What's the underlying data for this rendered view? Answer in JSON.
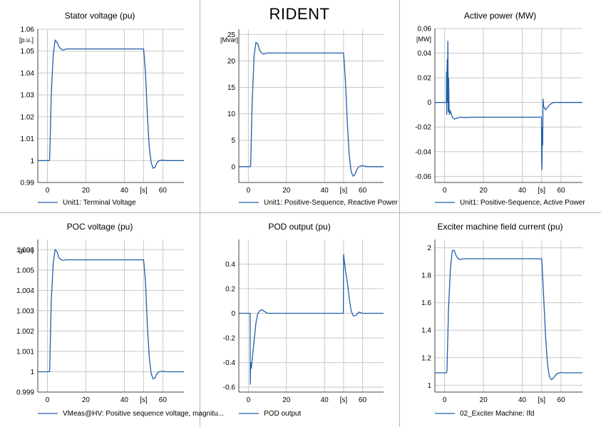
{
  "page": {
    "title": "RIDENT",
    "colors": {
      "line": "#1f5fa8",
      "grid": "#c8c8c8",
      "axis": "#444444",
      "border": "#b5b5b5"
    }
  },
  "chart_data": [
    {
      "type": "line",
      "title": "Stator voltage (pu)",
      "ylabel": "[p.u.]",
      "xlabel": "[s]",
      "xlim": [
        -5,
        71
      ],
      "ylim": [
        0.99,
        1.06
      ],
      "xticks": [
        "0",
        "20",
        "40",
        "60"
      ],
      "yticks": [
        "0.99",
        "1",
        "1.01",
        "1.02",
        "1.03",
        "1.04",
        "1.05",
        "1.06"
      ],
      "legend": "Unit1: Terminal Voltage",
      "grid": true,
      "x": [
        -5,
        1,
        1.2,
        2,
        3,
        4,
        5,
        6,
        7,
        8,
        10,
        15,
        25,
        35,
        50,
        50.3,
        51,
        52,
        53,
        54,
        55,
        56,
        57,
        58,
        60,
        62,
        65,
        71
      ],
      "y": [
        1.0,
        1.0,
        1.001,
        1.03,
        1.048,
        1.055,
        1.054,
        1.052,
        1.051,
        1.0505,
        1.051,
        1.051,
        1.051,
        1.051,
        1.051,
        1.048,
        1.04,
        1.02,
        1.006,
        0.999,
        0.9965,
        0.997,
        0.999,
        1.0,
        1.0002,
        1.0,
        1.0,
        1.0
      ]
    },
    {
      "type": "line",
      "title": "",
      "ylabel": "[Mvar]",
      "xlabel": "[s]",
      "xlim": [
        -5,
        71
      ],
      "ylim": [
        -3,
        26
      ],
      "xticks": [
        "0",
        "20",
        "40",
        "60"
      ],
      "yticks": [
        "0",
        "5",
        "10",
        "15",
        "20",
        "25"
      ],
      "legend": "Unit1: Positive-Sequence, Reactive Power",
      "grid": true,
      "x": [
        -5,
        1,
        1.2,
        2,
        3,
        4,
        5,
        6,
        7,
        8,
        10,
        15,
        25,
        35,
        50,
        50.3,
        51,
        52,
        53,
        54,
        55,
        56,
        57,
        58,
        60,
        62,
        65,
        71
      ],
      "y": [
        0,
        0,
        0.3,
        12,
        21,
        23.5,
        23.2,
        22,
        21.5,
        21.3,
        21.5,
        21.5,
        21.5,
        21.5,
        21.5,
        20,
        16,
        8,
        2,
        -1,
        -1.8,
        -1.5,
        -0.5,
        0,
        0.2,
        0,
        0,
        0
      ]
    },
    {
      "type": "line",
      "title": "Active power (MW)",
      "ylabel": "[MW]",
      "xlabel": "[s]",
      "xlim": [
        -5,
        71
      ],
      "ylim": [
        -0.065,
        0.06
      ],
      "xticks": [
        "0",
        "20",
        "40",
        "60"
      ],
      "yticks": [
        "-0.06",
        "-0.04",
        "-0.02",
        "0",
        "0.02",
        "0.04",
        "0.06"
      ],
      "legend": "Unit1: Positive-Sequence, Active Power",
      "grid": true,
      "x": [
        -5,
        0.9,
        1.0,
        1.1,
        1.3,
        1.5,
        1.7,
        1.9,
        2.1,
        2.3,
        2.5,
        3,
        4,
        5,
        6,
        7,
        8,
        10,
        15,
        25,
        35,
        49.9,
        50.0,
        50.1,
        50.3,
        50.5,
        50.7,
        51,
        52,
        53,
        54,
        56,
        58,
        60,
        71
      ],
      "y": [
        0,
        0,
        0.025,
        -0.01,
        0.035,
        0.0,
        0.05,
        -0.008,
        0.02,
        -0.003,
        -0.01,
        -0.007,
        -0.012,
        -0.0135,
        -0.013,
        -0.0125,
        -0.012,
        -0.0122,
        -0.012,
        -0.012,
        -0.012,
        -0.012,
        -0.05,
        -0.055,
        -0.02,
        -0.035,
        0.003,
        -0.003,
        -0.006,
        -0.004,
        -0.002,
        0.0,
        0.0,
        0.0,
        0.0
      ]
    },
    {
      "type": "line",
      "title": "POC voltage (pu)",
      "ylabel": "[p.u.]",
      "xlabel": "[s]",
      "xlim": [
        -5,
        71
      ],
      "ylim": [
        0.999,
        1.0065
      ],
      "xticks": [
        "0",
        "20",
        "40",
        "60"
      ],
      "yticks": [
        "0.999",
        "1",
        "1.001",
        "1.002",
        "1.003",
        "1.004",
        "1.005",
        "1.006"
      ],
      "legend": "VMeas@HV: Positive sequence voltage, magnitu...",
      "grid": true,
      "x": [
        -5,
        1,
        1.2,
        2,
        3,
        4,
        5,
        6,
        7,
        8,
        10,
        15,
        25,
        35,
        50,
        50.3,
        51,
        52,
        53,
        54,
        55,
        56,
        57,
        58,
        60,
        62,
        65,
        71
      ],
      "y": [
        1.0,
        1.0,
        1.0001,
        1.0035,
        1.0053,
        1.006,
        1.0059,
        1.0056,
        1.00552,
        1.00548,
        1.0055,
        1.0055,
        1.0055,
        1.0055,
        1.0055,
        1.0052,
        1.0044,
        1.0022,
        1.0007,
        0.9999,
        0.99965,
        0.9997,
        0.9999,
        1.0,
        1.00002,
        1.0,
        1.0,
        1.0
      ]
    },
    {
      "type": "line",
      "title": "POD output (pu)",
      "ylabel": "",
      "xlabel": "[s]",
      "xlim": [
        -5,
        71
      ],
      "ylim": [
        -0.64,
        0.6
      ],
      "xticks": [
        "0",
        "20",
        "40",
        "60"
      ],
      "yticks": [
        "-0.6",
        "-0.4",
        "-0.2",
        "0",
        "0.2",
        "0.4"
      ],
      "legend": "POD output",
      "grid": true,
      "x": [
        -5,
        0.9,
        1.0,
        1.2,
        1.5,
        2,
        3,
        4,
        5,
        6,
        7,
        8,
        9,
        10,
        12,
        15,
        25,
        35,
        49.9,
        50.0,
        50.2,
        50.5,
        51,
        52,
        53,
        54,
        55,
        56,
        57,
        58,
        60,
        63,
        66,
        71
      ],
      "y": [
        0,
        0,
        -0.58,
        -0.4,
        -0.45,
        -0.38,
        -0.22,
        -0.08,
        0.0,
        0.02,
        0.03,
        0.02,
        0.01,
        0.0,
        0.0,
        0.0,
        0.0,
        0.0,
        0.0,
        0.48,
        0.45,
        0.42,
        0.35,
        0.25,
        0.12,
        0.02,
        -0.02,
        -0.02,
        -0.01,
        0.01,
        0.0,
        0.0,
        0.0,
        0.0
      ]
    },
    {
      "type": "line",
      "title": "Exciter machine field current (pu)",
      "ylabel": "",
      "xlabel": "[s]",
      "xlim": [
        -5,
        71
      ],
      "ylim": [
        0.95,
        2.06
      ],
      "xticks": [
        "0",
        "20",
        "40",
        "60"
      ],
      "yticks": [
        "1",
        "1.2",
        "1.4",
        "1.6",
        "1.8",
        "2"
      ],
      "legend": "02_Exciter Machine: Ifd",
      "grid": true,
      "x": [
        -5,
        1,
        1.2,
        2,
        3,
        4,
        5,
        6,
        7,
        8,
        10,
        15,
        25,
        35,
        50,
        50.3,
        51,
        52,
        53,
        54,
        55,
        56,
        57,
        58,
        60,
        62,
        65,
        71
      ],
      "y": [
        1.09,
        1.09,
        1.1,
        1.55,
        1.85,
        1.98,
        1.98,
        1.94,
        1.92,
        1.915,
        1.92,
        1.92,
        1.92,
        1.92,
        1.92,
        1.85,
        1.65,
        1.35,
        1.15,
        1.06,
        1.04,
        1.05,
        1.07,
        1.085,
        1.092,
        1.09,
        1.09,
        1.09
      ]
    }
  ]
}
